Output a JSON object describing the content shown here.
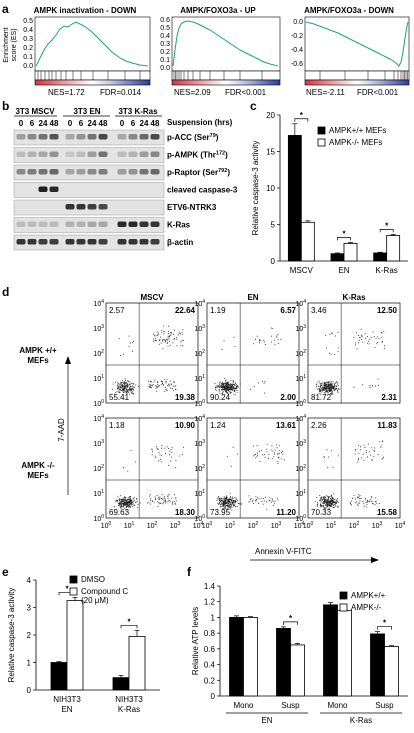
{
  "panel_labels": [
    "a",
    "b",
    "c",
    "d",
    "e",
    "f"
  ],
  "gsea": {
    "ylabel_top": "Enrichment",
    "ylabel_bottom": "score (ES)",
    "plots": [
      {
        "title": "AMPK inactivation - DOWN",
        "nes": "NES=1.72",
        "fdr": "FDR=0.014",
        "yticks": [
          "0.5",
          "0.4",
          "0.3",
          "0.2",
          "0.1",
          "0.0"
        ]
      },
      {
        "title": "AMPK/FOXO3a - UP",
        "nes": "NES=2.09",
        "fdr": "FDR<0.001",
        "yticks": [
          "0.6",
          "0.5",
          "0.4",
          "0.3",
          "0.2",
          "0.1",
          "0.0"
        ]
      },
      {
        "title": "AMPK/FOXO3a - DOWN",
        "nes": "NES=-2.11",
        "fdr": "FDR<0.001",
        "yticks": [
          "0.0",
          "-0.2",
          "-0.4",
          "-0.6"
        ]
      }
    ]
  },
  "western": {
    "groups": [
      "3T3 MSCV",
      "3T3 EN",
      "3T3 K-Ras"
    ],
    "timepoints": [
      "0",
      "6",
      "24",
      "48"
    ],
    "time_label": "Suspension (hrs)",
    "rows": [
      {
        "label": "p-ACC (Ser",
        "sup": "79",
        "close": ")"
      },
      {
        "label": "p-AMPK (Thr",
        "sup": "172",
        "close": ")"
      },
      {
        "label": "p-Raptor (Ser",
        "sup": "792",
        "close": ")"
      },
      {
        "label": "cleaved caspase-3",
        "sup": "",
        "close": ""
      },
      {
        "label": "ETV6-NTRK3",
        "sup": "",
        "close": ""
      },
      {
        "label": "K-Ras",
        "sup": "",
        "close": ""
      },
      {
        "label": "β-actin",
        "sup": "",
        "close": ""
      }
    ]
  },
  "flow": {
    "columns": [
      "MSCV",
      "EN",
      "K-Ras"
    ],
    "rows": [
      "AMPK +/+\nMEFs",
      "AMPK -/-\nMEFs"
    ],
    "row_labels": [
      [
        "AMPK +/+",
        "MEFs"
      ],
      [
        "AMPK -/-",
        "MEFs"
      ]
    ],
    "ylabel": "7-AAD",
    "xlabel": "Annexin V-FITC",
    "tick_labels": [
      "10",
      "10",
      "10",
      "10",
      "10"
    ],
    "tick_exps": [
      "0",
      "1",
      "2",
      "3",
      "4"
    ],
    "quadrants": [
      [
        {
          "ul": "2.57",
          "ur": "22.64",
          "ll": "55.41",
          "lr": "19.38"
        },
        {
          "ul": "1.19",
          "ur": "6.57",
          "ll": "90.24",
          "lr": "2.00"
        },
        {
          "ul": "3.46",
          "ur": "12.50",
          "ll": "81.72",
          "lr": "2.31"
        }
      ],
      [
        {
          "ul": "1.18",
          "ur": "10.90",
          "ll": "69.63",
          "lr": "18.30"
        },
        {
          "ul": "1.24",
          "ur": "13.61",
          "ll": "73.95",
          "lr": "11.20"
        },
        {
          "ul": "2.26",
          "ur": "11.83",
          "ll": "70.33",
          "lr": "15.58"
        }
      ]
    ]
  },
  "chart_data": [
    {
      "panel": "c",
      "type": "bar",
      "categories": [
        "MSCV",
        "EN",
        "K-Ras"
      ],
      "series": [
        {
          "name": "AMPK+/+ MEFs",
          "values": [
            17.2,
            1.0,
            1.1
          ],
          "errors": [
            1.6,
            0.1,
            0.1
          ],
          "color": "#000000"
        },
        {
          "name": "AMPK-/- MEFs",
          "values": [
            5.3,
            2.4,
            3.5
          ],
          "errors": [
            0.2,
            0.15,
            0.15
          ],
          "color": "#ffffff"
        }
      ],
      "ylabel": "Relative caspase-3 activity",
      "ylim": [
        0,
        20
      ],
      "yticks": [
        0,
        5,
        10,
        15,
        20
      ],
      "significance": [
        "*",
        "*",
        "*"
      ]
    },
    {
      "panel": "e",
      "type": "bar",
      "categories": [
        "NIH3T3\nEN",
        "NIH3T3\nK-Ras"
      ],
      "category_lines": [
        [
          "NIH3T3",
          "EN"
        ],
        [
          "NIH3T3",
          "K-Ras"
        ]
      ],
      "series": [
        {
          "name": "DMSO",
          "values": [
            1.0,
            0.45
          ],
          "errors": [
            0.03,
            0.08
          ],
          "color": "#000000"
        },
        {
          "name": "Compound C\n(20 μM)",
          "legend_lines": [
            "Compound C",
            "(20 μM)"
          ],
          "values": [
            3.25,
            1.95
          ],
          "errors": [
            0.12,
            0.22
          ],
          "color": "#ffffff"
        }
      ],
      "ylabel": "Relative caspase-3 activity",
      "ylim": [
        0,
        4
      ],
      "yticks": [
        0,
        1,
        2,
        3,
        4
      ],
      "significance": [
        "*",
        "*"
      ]
    },
    {
      "panel": "f",
      "type": "bar",
      "categories": [
        "Mono",
        "Susp",
        "Mono",
        "Susp"
      ],
      "group_labels": [
        "EN",
        "K-Ras"
      ],
      "series": [
        {
          "name": "AMPK+/+",
          "values": [
            1.0,
            0.86,
            1.16,
            0.79
          ],
          "errors": [
            0.02,
            0.02,
            0.03,
            0.03
          ],
          "color": "#000000"
        },
        {
          "name": "AMPK-/-",
          "values": [
            1.0,
            0.65,
            1.09,
            0.63
          ],
          "errors": [
            0.01,
            0.02,
            0.01,
            0.01
          ],
          "color": "#ffffff"
        }
      ],
      "ylabel": "Relative ATP levels",
      "ylim": [
        0,
        1.4
      ],
      "yticks": [
        "0",
        "0.2",
        "0.4",
        "0.6",
        "0.8",
        "1",
        "1.2",
        "1.4"
      ],
      "significance": [
        "",
        "*",
        "",
        "*"
      ]
    }
  ]
}
